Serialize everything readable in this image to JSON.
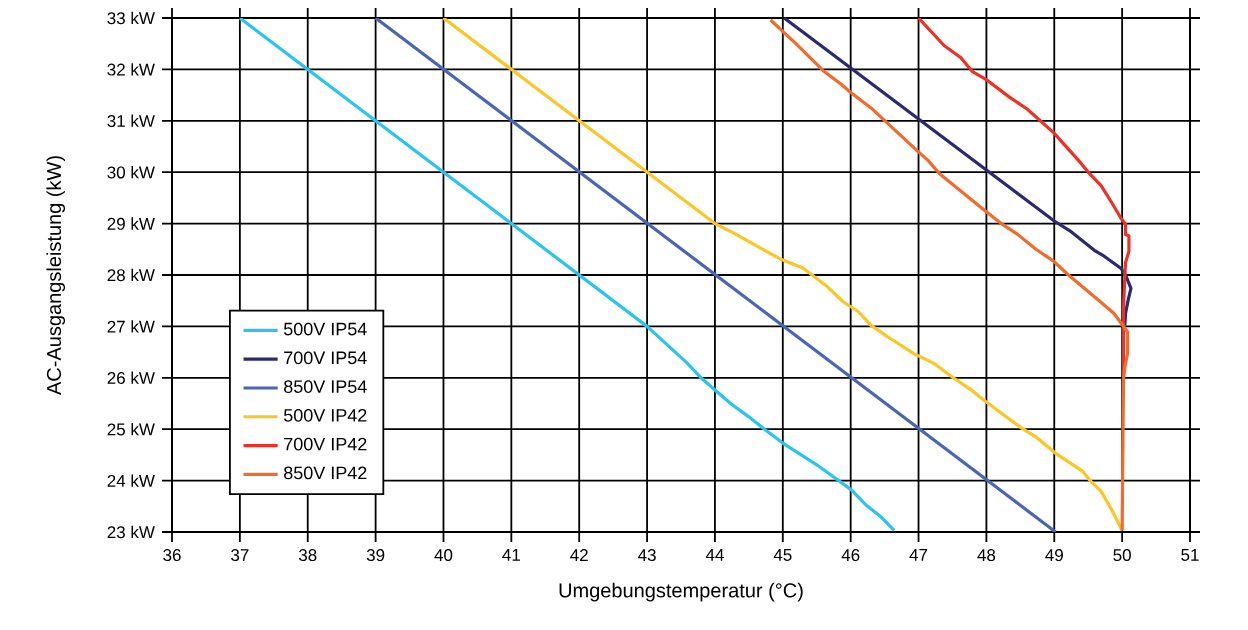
{
  "chart_data": {
    "type": "line",
    "xlabel": "Umgebungstemperatur (°C)",
    "ylabel": "AC-Ausgangsleistung (kW)",
    "xlim": [
      36,
      51
    ],
    "xticks": [
      36,
      37,
      38,
      39,
      40,
      41,
      42,
      43,
      44,
      45,
      46,
      47,
      48,
      49,
      50,
      51
    ],
    "ylim": [
      23,
      33
    ],
    "yticks": [
      {
        "value": 23,
        "label": "23 kW"
      },
      {
        "value": 24,
        "label": "24 kW"
      },
      {
        "value": 25,
        "label": "25 kW"
      },
      {
        "value": 26,
        "label": "26 kW"
      },
      {
        "value": 27,
        "label": "27 kW"
      },
      {
        "value": 28,
        "label": "28 kW"
      },
      {
        "value": 29,
        "label": "29 kW"
      },
      {
        "value": 30,
        "label": "30 kW"
      },
      {
        "value": 31,
        "label": "31 kW"
      },
      {
        "value": 32,
        "label": "32 kW"
      },
      {
        "value": 33,
        "label": "33 kW"
      }
    ],
    "grid": true,
    "legend": "bottom left",
    "marker": "none",
    "line_style": "solid",
    "series": [
      {
        "name": "500V IP54",
        "color": "#29c4f0",
        "x": [
          37,
          43,
          43.58,
          43.81,
          44.24,
          44.49,
          44.73,
          45.0,
          45.53,
          45.76,
          46.01,
          46.23,
          46.45,
          46.64
        ],
        "values": [
          33,
          27,
          26.3,
          25.98,
          25.49,
          25.25,
          25.0,
          24.73,
          24.28,
          24.06,
          23.82,
          23.52,
          23.29,
          23.03
        ]
      },
      {
        "name": "700V IP54",
        "color": "#2b2a6e",
        "x": [
          45.02,
          49.0,
          49.23,
          49.59,
          49.73,
          49.99,
          50.06,
          50.13,
          50.09,
          50.05,
          50.04
        ],
        "values": [
          33,
          29.05,
          28.86,
          28.48,
          28.37,
          28.12,
          27.97,
          27.74,
          27.52,
          27.25,
          27.02
        ]
      },
      {
        "name": "850V IP54",
        "color": "#4a66b3",
        "x": [
          39,
          49.02
        ],
        "values": [
          33,
          23
        ]
      },
      {
        "name": "500V IP42",
        "color": "#fcc624",
        "x": [
          40,
          44.0,
          44.3,
          44.62,
          44.98,
          45.29,
          45.65,
          45.89,
          46.11,
          46.3,
          46.59,
          46.93,
          47.24,
          47.5,
          47.79,
          47.98,
          48.51,
          48.75,
          49.01,
          49.42,
          49.52,
          49.69,
          49.86,
          50.0
        ],
        "values": [
          33,
          29,
          28.8,
          28.56,
          28.3,
          28.14,
          27.78,
          27.48,
          27.29,
          27.02,
          26.76,
          26.47,
          26.27,
          26.01,
          25.75,
          25.55,
          25.03,
          24.83,
          24.54,
          24.18,
          24.01,
          23.79,
          23.4,
          23.03
        ]
      },
      {
        "name": "700V IP42",
        "color": "#ee3124",
        "x": [
          47.0,
          47.38,
          47.62,
          47.8,
          48.0,
          48.34,
          48.6,
          48.99,
          49.37,
          49.52,
          49.69,
          49.85,
          49.99,
          50.05,
          50.05,
          50.1,
          50.1,
          50.05,
          50.04,
          50.02,
          50.02
        ],
        "values": [
          33,
          32.46,
          32.23,
          31.95,
          31.8,
          31.46,
          31.23,
          30.77,
          30.21,
          29.97,
          29.74,
          29.4,
          29.09,
          28.99,
          28.79,
          28.76,
          28.46,
          28.24,
          27.97,
          27.38,
          25.98
        ]
      },
      {
        "name": "850V IP42",
        "color": "#f26b2a",
        "x": [
          44.82,
          45.0,
          45.2,
          45.6,
          45.87,
          46.01,
          46.3,
          46.97,
          47.14,
          47.31,
          47.98,
          48.2,
          48.46,
          48.73,
          48.99,
          49.2,
          49.68,
          49.88,
          49.97,
          50.08,
          50.08,
          50.04,
          50.02,
          50.0
        ],
        "values": [
          32.96,
          32.74,
          32.49,
          31.97,
          31.7,
          31.54,
          31.25,
          30.43,
          30.23,
          29.97,
          29.25,
          29.02,
          28.79,
          28.5,
          28.27,
          28.01,
          27.48,
          27.25,
          27.09,
          26.89,
          26.47,
          26.21,
          25.98,
          23.03
        ]
      }
    ]
  }
}
